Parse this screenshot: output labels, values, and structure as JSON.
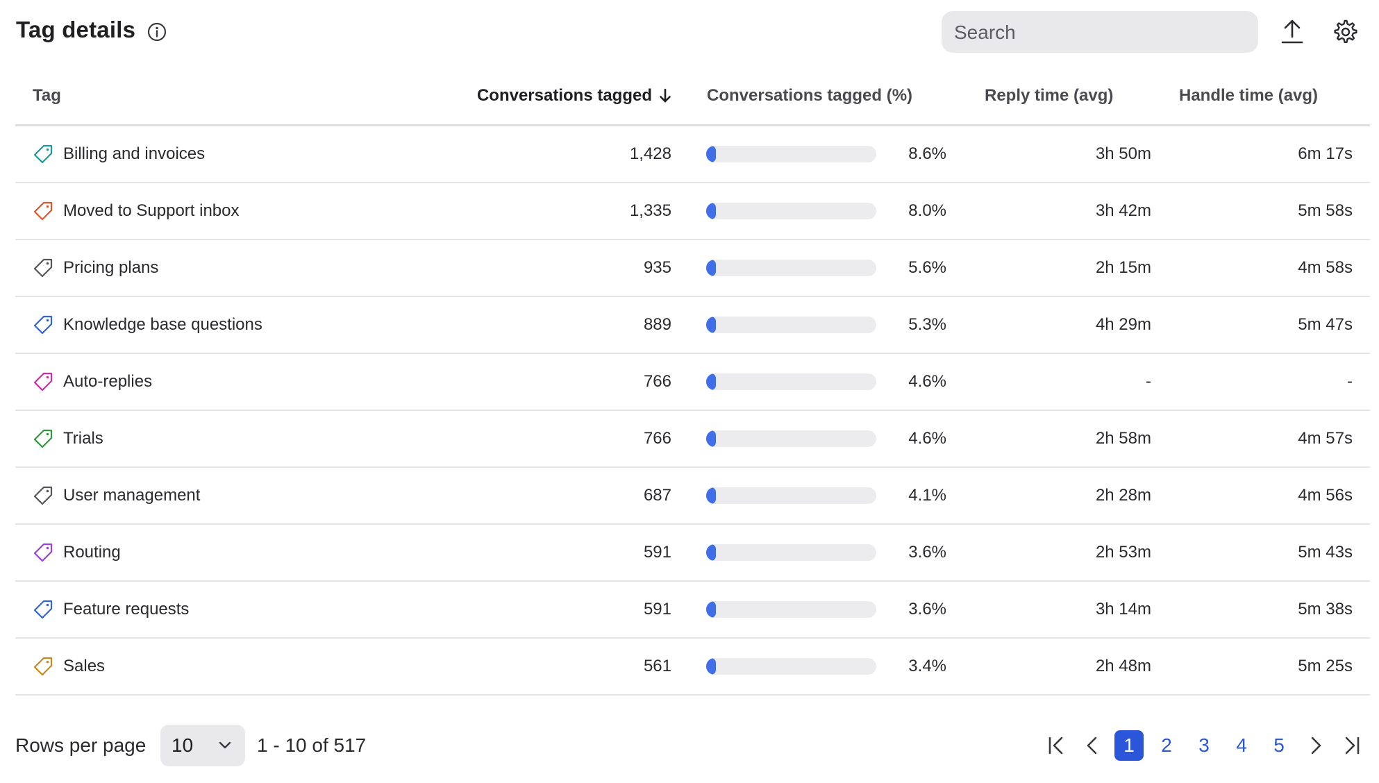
{
  "header": {
    "title": "Tag details",
    "search_placeholder": "Search"
  },
  "table": {
    "columns": {
      "tag": "Tag",
      "conversations_tagged": "Conversations tagged",
      "conversations_tagged_pct": "Conversations tagged (%)",
      "reply_time": "Reply time (avg)",
      "handle_time": "Handle time (avg)"
    },
    "sort": {
      "column": "conversations_tagged",
      "direction": "descending"
    },
    "rows": [
      {
        "tag": "Billing and invoices",
        "tag_color": "#1a9a9a",
        "conversations": "1,428",
        "pct": "8.6%",
        "pct_value": 8.6,
        "reply": "3h 50m",
        "handle": "6m 17s"
      },
      {
        "tag": "Moved to Support inbox",
        "tag_color": "#e8542a",
        "conversations": "1,335",
        "pct": "8.0%",
        "pct_value": 8.0,
        "reply": "3h 42m",
        "handle": "5m 58s"
      },
      {
        "tag": "Pricing plans",
        "tag_color": "#55555b",
        "conversations": "935",
        "pct": "5.6%",
        "pct_value": 5.6,
        "reply": "2h 15m",
        "handle": "4m 58s"
      },
      {
        "tag": "Knowledge base questions",
        "tag_color": "#2f63e0",
        "conversations": "889",
        "pct": "5.3%",
        "pct_value": 5.3,
        "reply": "4h 29m",
        "handle": "5m 47s"
      },
      {
        "tag": "Auto-replies",
        "tag_color": "#d42aa8",
        "conversations": "766",
        "pct": "4.6%",
        "pct_value": 4.6,
        "reply": "-",
        "handle": "-"
      },
      {
        "tag": "Trials",
        "tag_color": "#2f9a3c",
        "conversations": "766",
        "pct": "4.6%",
        "pct_value": 4.6,
        "reply": "2h 58m",
        "handle": "4m 57s"
      },
      {
        "tag": "User management",
        "tag_color": "#55555b",
        "conversations": "687",
        "pct": "4.1%",
        "pct_value": 4.1,
        "reply": "2h 28m",
        "handle": "4m 56s"
      },
      {
        "tag": "Routing",
        "tag_color": "#9b3fe0",
        "conversations": "591",
        "pct": "3.6%",
        "pct_value": 3.6,
        "reply": "2h 53m",
        "handle": "5m 43s"
      },
      {
        "tag": "Feature requests",
        "tag_color": "#2f63e0",
        "conversations": "591",
        "pct": "3.6%",
        "pct_value": 3.6,
        "reply": "3h 14m",
        "handle": "5m 38s"
      },
      {
        "tag": "Sales",
        "tag_color": "#c88a1a",
        "conversations": "561",
        "pct": "3.4%",
        "pct_value": 3.4,
        "reply": "2h 48m",
        "handle": "5m 25s"
      }
    ]
  },
  "footer": {
    "rows_per_page_label": "Rows per page",
    "rows_per_page_value": "10",
    "range_text": "1 - 10 of 517",
    "pages": [
      "1",
      "2",
      "3",
      "4",
      "5"
    ],
    "current_page": "1"
  },
  "colors": {
    "accent": "#2b56d9",
    "bar_fill": "#3f6ee8",
    "bar_track": "#ececee"
  },
  "icons": {
    "info": "info-icon",
    "export": "upload-icon",
    "settings": "gear-icon",
    "sort": "arrow-down-icon",
    "tag": "tag-icon",
    "select": "chevron-down-icon",
    "first": "first-page-icon",
    "prev": "chevron-left-icon",
    "next": "chevron-right-icon",
    "last": "last-page-icon"
  }
}
